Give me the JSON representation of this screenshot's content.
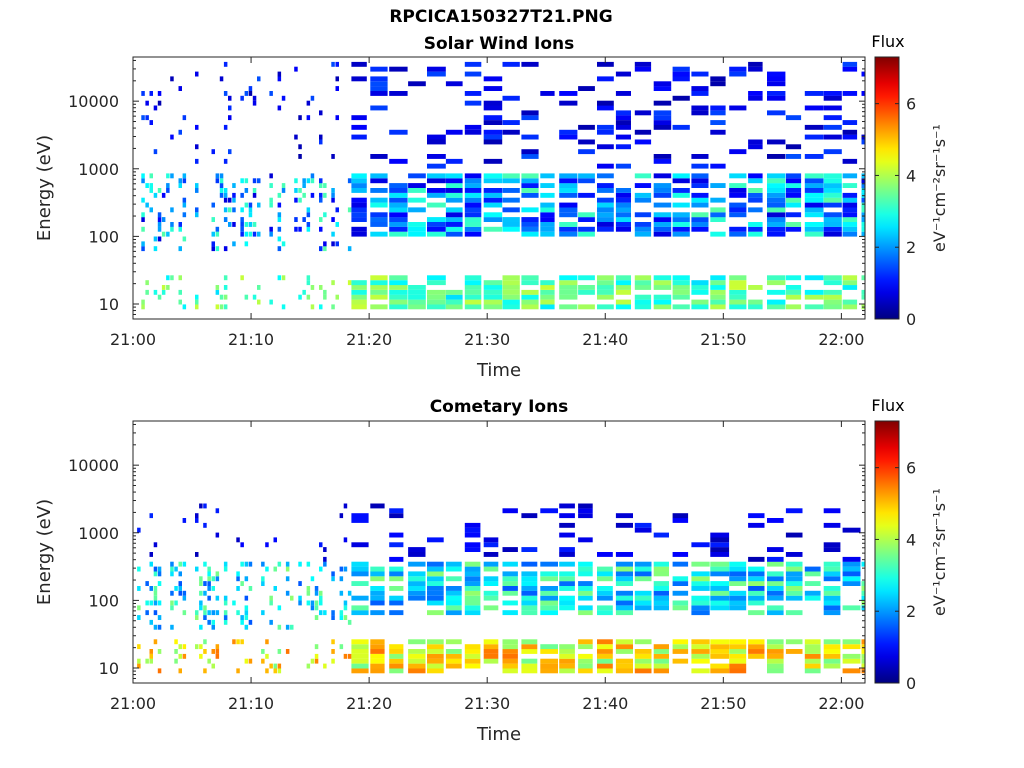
{
  "figure": {
    "title": "RPCICA150327T21.PNG"
  },
  "chart_data": [
    {
      "type": "heatmap",
      "title": "Solar Wind Ions",
      "xlabel": "Time",
      "ylabel": "Energy (eV)",
      "y_scale": "log",
      "ylim": [
        6,
        45000
      ],
      "xlim": [
        "21:00",
        "22:02"
      ],
      "x_ticks": [
        "21:00",
        "21:10",
        "21:20",
        "21:30",
        "21:40",
        "21:50",
        "22:00"
      ],
      "y_ticks": [
        "10",
        "100",
        "1000",
        "10000"
      ],
      "colorbar": {
        "label": "Flux",
        "unit_label": "eV⁻¹cm⁻²sr⁻¹s⁻¹",
        "range": [
          0,
          7.3
        ],
        "ticks": [
          "0",
          "2",
          "4",
          "6"
        ],
        "colormap": "jet"
      },
      "population": {
        "low_energy_band_eV": [
          8,
          25
        ],
        "low_energy_flux": [
          2.5,
          4.2
        ],
        "main_band_eV": [
          100,
          900
        ],
        "main_band_flux": [
          0.6,
          3.4
        ],
        "sparse_high_energy_eV": [
          1000,
          40000
        ],
        "sparse_high_energy_flux": [
          0.3,
          1.5
        ]
      }
    },
    {
      "type": "heatmap",
      "title": "Cometary Ions",
      "xlabel": "Time",
      "ylabel": "Energy (eV)",
      "y_scale": "log",
      "ylim": [
        6,
        45000
      ],
      "xlim": [
        "21:00",
        "22:02"
      ],
      "x_ticks": [
        "21:00",
        "21:10",
        "21:20",
        "21:30",
        "21:40",
        "21:50",
        "22:00"
      ],
      "y_ticks": [
        "10",
        "100",
        "1000",
        "10000"
      ],
      "colorbar": {
        "label": "Flux",
        "unit_label": "eV⁻¹cm⁻²sr⁻¹s⁻¹",
        "range": [
          0,
          7.3
        ],
        "ticks": [
          "0",
          "2",
          "4",
          "6"
        ],
        "colormap": "jet"
      },
      "population": {
        "low_energy_band_eV": [
          8,
          25
        ],
        "low_energy_flux": [
          3.5,
          5.6
        ],
        "main_band_eV": [
          60,
          400
        ],
        "main_band_flux": [
          1.5,
          3.8
        ],
        "sparse_high_energy_eV": [
          400,
          2600
        ],
        "sparse_high_energy_flux": [
          0.3,
          1.2
        ]
      }
    }
  ]
}
